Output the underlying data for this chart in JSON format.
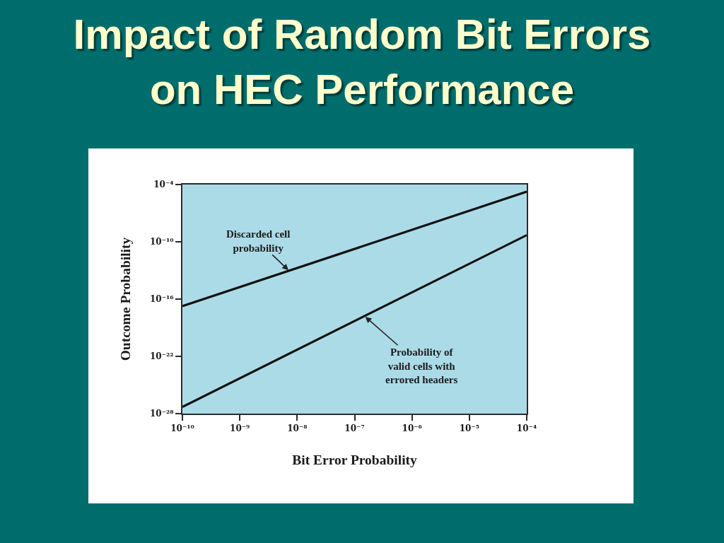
{
  "chart_data": {
    "type": "line",
    "title": "Impact of Random Bit Errors\non HEC Performance",
    "xlabel": "Bit Error Probability",
    "ylabel": "Outcome Probability",
    "x": [
      1e-10,
      0.0001
    ],
    "series": [
      {
        "color": "#111111",
        "values": [
          1.8e-17,
          1.8e-05
        ]
      },
      {
        "color": "#111111",
        "values": [
          5e-28,
          5e-10
        ]
      }
    ],
    "log": "xy",
    "xlim": [
      1e-10,
      0.0001
    ],
    "ylim": [
      1e-28,
      0.0001
    ],
    "xticks": [
      {
        "value": 1e-10,
        "label": "10⁻¹⁰"
      },
      {
        "value": 1e-09,
        "label": "10⁻⁹"
      },
      {
        "value": 1e-08,
        "label": "10⁻⁸"
      },
      {
        "value": 1e-07,
        "label": "10⁻⁷"
      },
      {
        "value": 1e-06,
        "label": "10⁻⁶"
      },
      {
        "value": 1e-05,
        "label": "10⁻⁵"
      },
      {
        "value": 0.0001,
        "label": "10⁻⁴"
      }
    ],
    "yticks": [
      {
        "value": 1e-28,
        "label": "10⁻²⁸"
      },
      {
        "value": 1e-22,
        "label": "10⁻²²"
      },
      {
        "value": 1e-16,
        "label": "10⁻¹⁶"
      },
      {
        "value": 1e-10,
        "label": "10⁻¹⁰"
      },
      {
        "value": 0.0001,
        "label": "10⁻⁴"
      }
    ],
    "annotations": [
      {
        "text": "Discarded cell\nprobability",
        "x": 7.2e-09,
        "y": 9.3e-14
      },
      {
        "text": "Probability of\nvalid cells with\nerrored headers",
        "x": 1.5e-07,
        "y": 1.6e-18
      }
    ]
  }
}
